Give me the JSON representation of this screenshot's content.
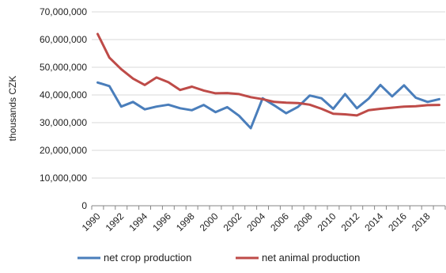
{
  "chart_data": {
    "type": "line",
    "ylabel": "thousands CZK",
    "xlabel": "",
    "ylim": [
      0,
      70000000
    ],
    "y_ticks": [
      0,
      10000000,
      20000000,
      30000000,
      40000000,
      50000000,
      60000000,
      70000000
    ],
    "y_tick_labels": [
      "0",
      "10,000,000",
      "20,000,000",
      "30,000,000",
      "40,000,000",
      "50,000,000",
      "60,000,000",
      "70,000,000"
    ],
    "x": [
      1990,
      1991,
      1992,
      1993,
      1994,
      1995,
      1996,
      1997,
      1998,
      1999,
      2000,
      2001,
      2002,
      2003,
      2004,
      2005,
      2006,
      2007,
      2008,
      2009,
      2010,
      2011,
      2012,
      2013,
      2014,
      2015,
      2016,
      2017,
      2018,
      2019
    ],
    "x_tick_labels": [
      "1990",
      "1992",
      "1994",
      "1996",
      "1998",
      "2000",
      "2002",
      "2004",
      "2006",
      "2008",
      "2010",
      "2012",
      "2014",
      "2016",
      "2018"
    ],
    "grid": "horizontal",
    "legend_position": "bottom",
    "series": [
      {
        "name": "net crop production",
        "color": "#4a7ebb",
        "values": [
          44500000,
          43200000,
          35800000,
          37500000,
          34800000,
          35800000,
          36500000,
          35200000,
          34500000,
          36400000,
          33800000,
          35600000,
          32500000,
          28000000,
          38800000,
          36200000,
          33400000,
          35700000,
          39800000,
          38800000,
          35000000,
          40300000,
          35200000,
          38700000,
          43600000,
          39500000,
          43500000,
          39000000,
          37500000,
          38500000
        ]
      },
      {
        "name": "net animal production",
        "color": "#be4b48",
        "values": [
          62000000,
          53500000,
          49300000,
          45900000,
          43600000,
          46300000,
          44600000,
          41800000,
          43000000,
          41600000,
          40600000,
          40700000,
          40300000,
          39200000,
          38500000,
          37500000,
          37200000,
          37100000,
          36500000,
          35000000,
          33200000,
          33000000,
          32600000,
          34500000,
          35000000,
          35400000,
          35800000,
          35900000,
          36300000,
          36400000
        ]
      }
    ]
  }
}
